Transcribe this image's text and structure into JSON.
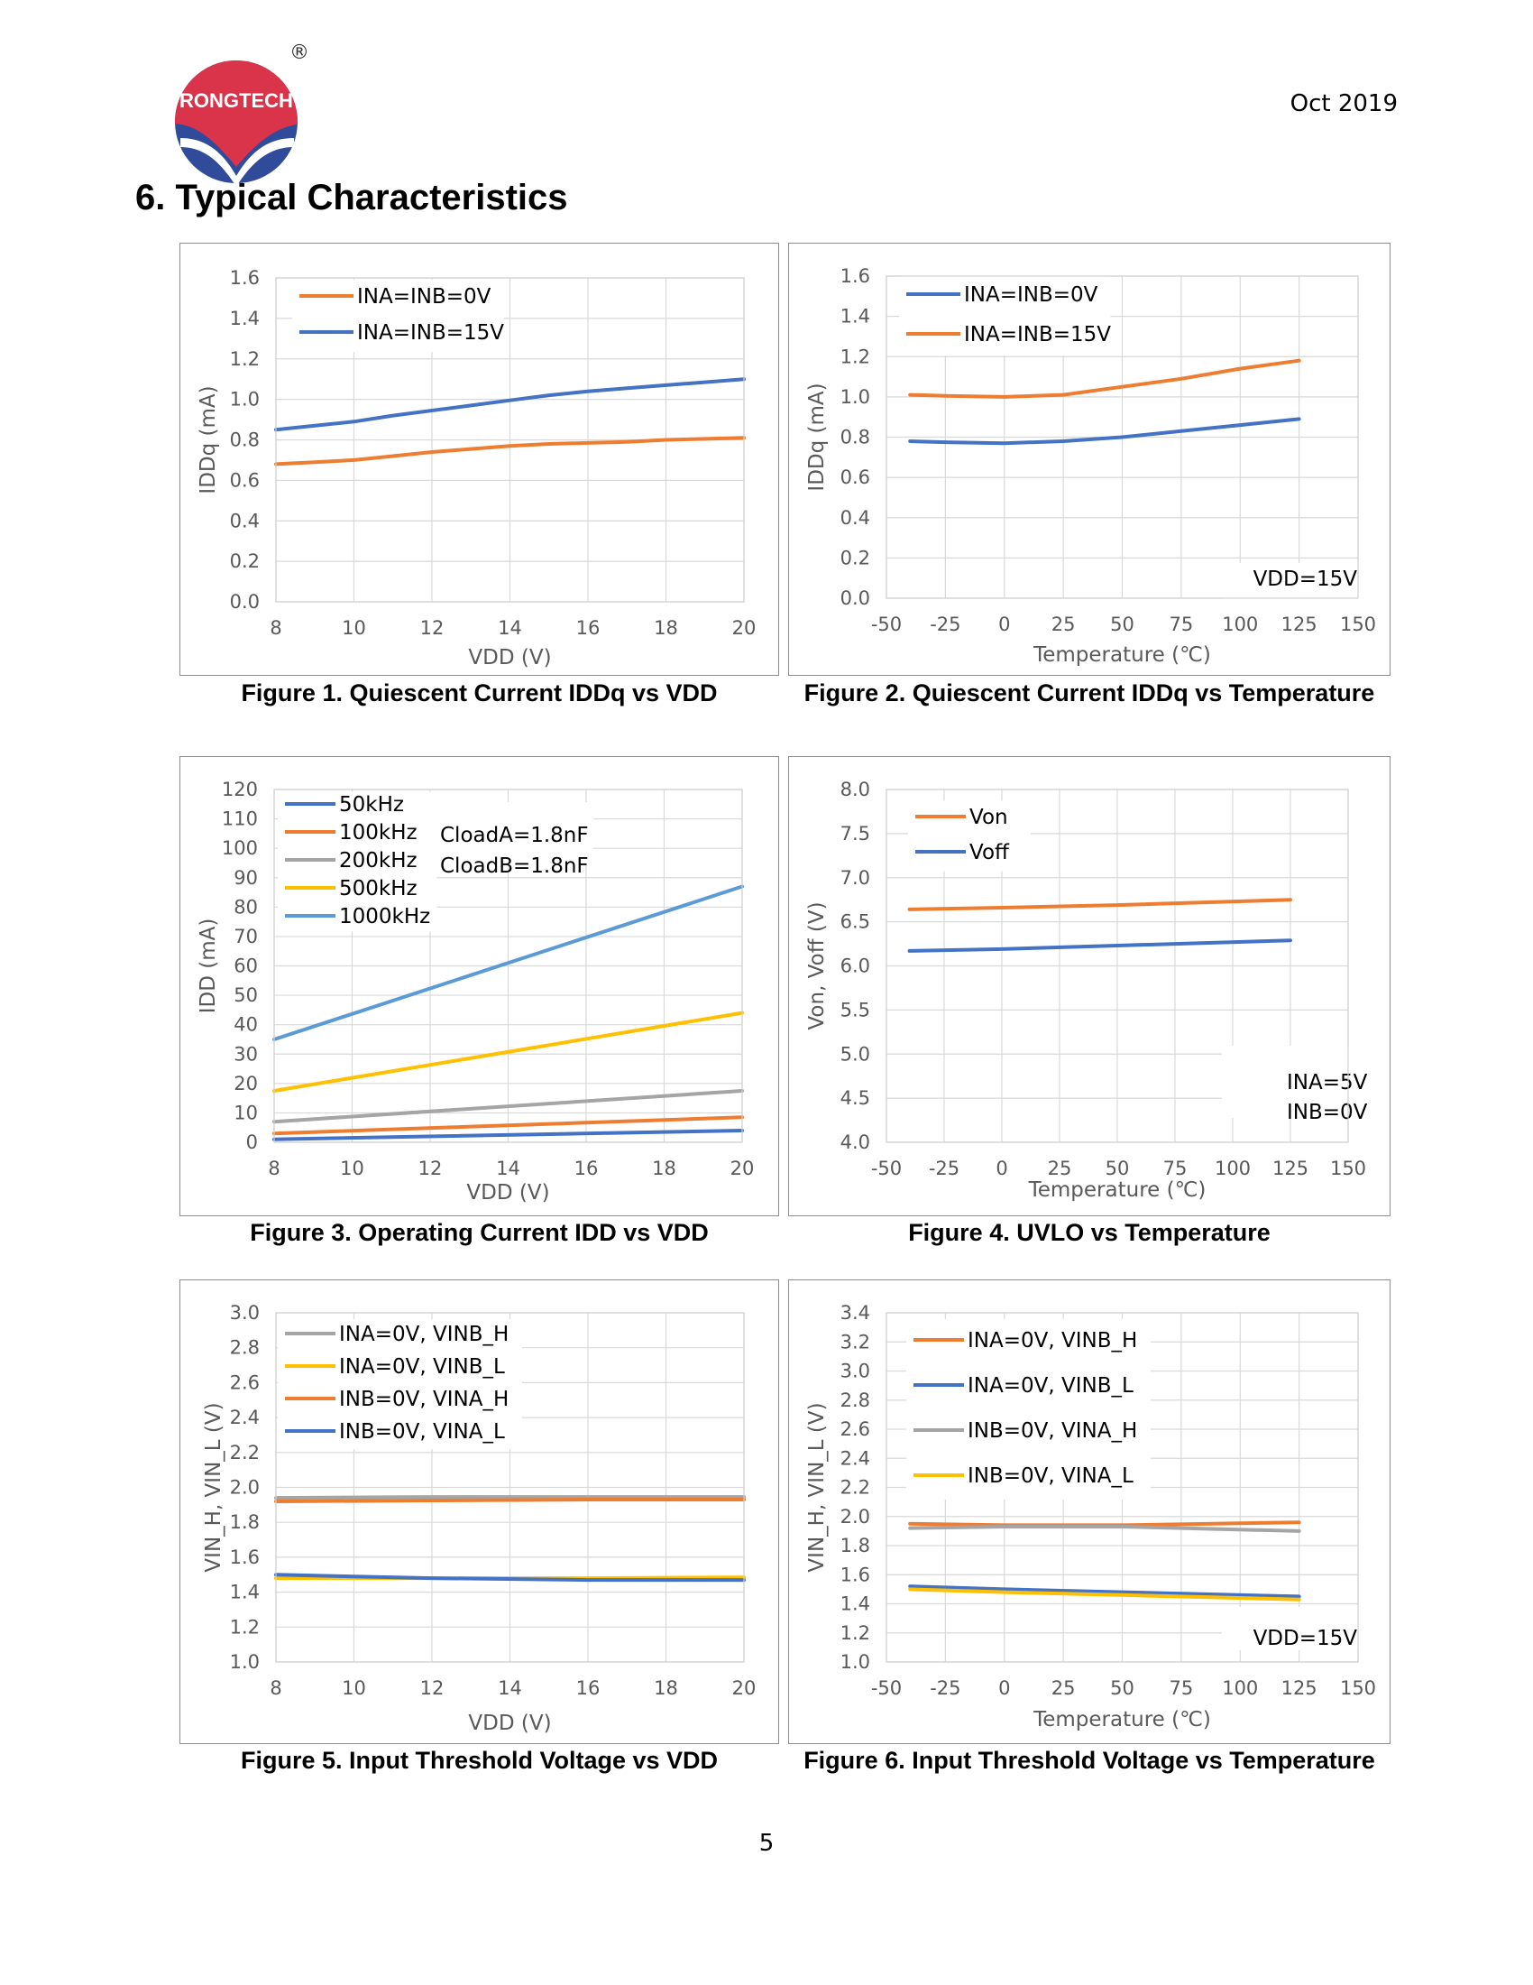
{
  "header": {
    "logo_text": "RONGTECH",
    "registered_mark": "®",
    "date": "Oct 2019",
    "section_title": "6.  Typical Characteristics"
  },
  "footer": {
    "page_number": "5"
  },
  "colors": {
    "blue": "#4472c4",
    "orange": "#ed7d31",
    "gray": "#a5a5a5",
    "yellow": "#ffc000",
    "lightblue": "#5b9bd5",
    "logo_red": "#d9344a",
    "logo_blue": "#2f4b9a"
  },
  "chart_data": [
    {
      "id": "fig1",
      "type": "line",
      "caption": "Figure 1. Quiescent Current IDDq vs VDD",
      "xlabel": "VDD (V)",
      "ylabel": "IDDq (mA)",
      "xlim": [
        8,
        20
      ],
      "ylim": [
        0,
        1.6
      ],
      "xticks": [
        8,
        10,
        12,
        14,
        16,
        18,
        20
      ],
      "xtick_labels": [
        "8",
        "10",
        "12",
        "14",
        "16",
        "18",
        "20"
      ],
      "yticks": [
        0,
        0.2,
        0.4,
        0.6,
        0.8,
        1.0,
        1.2,
        1.4,
        1.6
      ],
      "ytick_labels": [
        "0.0",
        "0.2",
        "0.4",
        "0.6",
        "0.8",
        "1.0",
        "1.2",
        "1.4",
        "1.6"
      ],
      "grid": "both",
      "legend_position": "top-left",
      "series": [
        {
          "name": "INA=INB=0V",
          "color": "orange",
          "x": [
            8,
            9,
            10,
            11,
            12,
            13,
            14,
            15,
            16,
            17,
            18,
            19,
            20
          ],
          "y": [
            0.68,
            0.69,
            0.7,
            0.72,
            0.74,
            0.755,
            0.77,
            0.78,
            0.785,
            0.79,
            0.8,
            0.805,
            0.81
          ]
        },
        {
          "name": "INA=INB=15V",
          "color": "blue",
          "x": [
            8,
            9,
            10,
            11,
            12,
            13,
            14,
            15,
            16,
            17,
            18,
            19,
            20
          ],
          "y": [
            0.85,
            0.87,
            0.89,
            0.92,
            0.945,
            0.97,
            0.995,
            1.02,
            1.04,
            1.055,
            1.07,
            1.085,
            1.1
          ]
        }
      ]
    },
    {
      "id": "fig2",
      "type": "line",
      "caption": "Figure 2. Quiescent Current IDDq vs Temperature",
      "xlabel": "Temperature (℃)",
      "ylabel": "IDDq (mA)",
      "xlim": [
        -50,
        150
      ],
      "ylim": [
        0,
        1.6
      ],
      "xticks": [
        -50,
        -25,
        0,
        25,
        50,
        75,
        100,
        125,
        150
      ],
      "xtick_labels": [
        "-50",
        "-25",
        "0",
        "25",
        "50",
        "75",
        "100",
        "125",
        "150"
      ],
      "yticks": [
        0,
        0.2,
        0.4,
        0.6,
        0.8,
        1.0,
        1.2,
        1.4,
        1.6
      ],
      "ytick_labels": [
        "0.0",
        "0.2",
        "0.4",
        "0.6",
        "0.8",
        "1.0",
        "1.2",
        "1.4",
        "1.6"
      ],
      "grid": "both",
      "legend_position": "top-left",
      "annotations": [
        "VDD=15V"
      ],
      "series": [
        {
          "name": "INA=INB=0V",
          "color": "blue",
          "x": [
            -40,
            -25,
            0,
            25,
            50,
            75,
            100,
            125
          ],
          "y": [
            0.78,
            0.775,
            0.77,
            0.78,
            0.8,
            0.83,
            0.86,
            0.89
          ]
        },
        {
          "name": "INA=INB=15V",
          "color": "orange",
          "x": [
            -40,
            -25,
            0,
            25,
            50,
            75,
            100,
            125
          ],
          "y": [
            1.01,
            1.005,
            1.0,
            1.01,
            1.05,
            1.09,
            1.14,
            1.18
          ]
        }
      ]
    },
    {
      "id": "fig3",
      "type": "line",
      "caption": "Figure 3. Operating Current IDD vs VDD",
      "xlabel": "VDD (V)",
      "ylabel": "IDD (mA)",
      "xlim": [
        8,
        20
      ],
      "ylim": [
        0,
        120
      ],
      "xticks": [
        8,
        10,
        12,
        14,
        16,
        18,
        20
      ],
      "xtick_labels": [
        "8",
        "10",
        "12",
        "14",
        "16",
        "18",
        "20"
      ],
      "yticks": [
        0,
        10,
        20,
        30,
        40,
        50,
        60,
        70,
        80,
        90,
        100,
        110,
        120
      ],
      "ytick_labels": [
        "0",
        "10",
        "20",
        "30",
        "40",
        "50",
        "60",
        "70",
        "80",
        "90",
        "100",
        "110",
        "120"
      ],
      "grid": "both",
      "legend_position": "top-left",
      "annotations": [
        "CloadA=1.8nF",
        "CloadB=1.8nF"
      ],
      "series": [
        {
          "name": "50kHz",
          "color": "blue",
          "x": [
            8,
            20
          ],
          "y": [
            1,
            4
          ]
        },
        {
          "name": "100kHz",
          "color": "orange",
          "x": [
            8,
            20
          ],
          "y": [
            3,
            8.5
          ]
        },
        {
          "name": "200kHz",
          "color": "gray",
          "x": [
            8,
            20
          ],
          "y": [
            7,
            17.5
          ]
        },
        {
          "name": "500kHz",
          "color": "yellow",
          "x": [
            8,
            20
          ],
          "y": [
            17.5,
            44
          ]
        },
        {
          "name": "1000kHz",
          "color": "lightblue",
          "x": [
            8,
            20
          ],
          "y": [
            35,
            87
          ]
        }
      ]
    },
    {
      "id": "fig4",
      "type": "line",
      "caption": "Figure 4. UVLO vs Temperature",
      "xlabel": "Temperature (℃)",
      "ylabel": "Von, Voff (V)",
      "xlim": [
        -50,
        150
      ],
      "ylim": [
        4.0,
        8.0
      ],
      "xticks": [
        -50,
        -25,
        0,
        25,
        50,
        75,
        100,
        125,
        150
      ],
      "xtick_labels": [
        "-50",
        "-25",
        "0",
        "25",
        "50",
        "75",
        "100",
        "125",
        "150"
      ],
      "yticks": [
        4.0,
        4.5,
        5.0,
        5.5,
        6.0,
        6.5,
        7.0,
        7.5,
        8.0
      ],
      "ytick_labels": [
        "4.0",
        "4.5",
        "5.0",
        "5.5",
        "6.0",
        "6.5",
        "7.0",
        "7.5",
        "8.0"
      ],
      "grid": "both",
      "legend_position": "top-left",
      "annotations": [
        "INA=5V",
        "INB=0V"
      ],
      "series": [
        {
          "name": "Von",
          "color": "orange",
          "x": [
            -40,
            0,
            50,
            125
          ],
          "y": [
            6.64,
            6.66,
            6.69,
            6.75
          ]
        },
        {
          "name": "Voff",
          "color": "blue",
          "x": [
            -40,
            0,
            50,
            125
          ],
          "y": [
            6.17,
            6.19,
            6.23,
            6.29
          ]
        }
      ]
    },
    {
      "id": "fig5",
      "type": "line",
      "caption": "Figure 5. Input Threshold Voltage vs VDD",
      "xlabel": "VDD (V)",
      "ylabel": "VIN_H, VIN_L (V)",
      "xlim": [
        8,
        20
      ],
      "ylim": [
        1.0,
        3.0
      ],
      "xticks": [
        8,
        10,
        12,
        14,
        16,
        18,
        20
      ],
      "xtick_labels": [
        "8",
        "10",
        "12",
        "14",
        "16",
        "18",
        "20"
      ],
      "yticks": [
        1.0,
        1.2,
        1.4,
        1.6,
        1.8,
        2.0,
        2.2,
        2.4,
        2.6,
        2.8,
        3.0
      ],
      "ytick_labels": [
        "1.0",
        "1.2",
        "1.4",
        "1.6",
        "1.8",
        "2.0",
        "2.2",
        "2.4",
        "2.6",
        "2.8",
        "3.0"
      ],
      "grid": "both",
      "legend_position": "top-left",
      "series": [
        {
          "name": "INA=0V, VINB_H",
          "color": "gray",
          "x": [
            8,
            12,
            16,
            20
          ],
          "y": [
            1.94,
            1.945,
            1.945,
            1.945
          ]
        },
        {
          "name": "INA=0V, VINB_L",
          "color": "yellow",
          "x": [
            8,
            12,
            16,
            20
          ],
          "y": [
            1.48,
            1.48,
            1.48,
            1.485
          ]
        },
        {
          "name": "INB=0V, VINA_H",
          "color": "orange",
          "x": [
            8,
            12,
            16,
            20
          ],
          "y": [
            1.92,
            1.925,
            1.93,
            1.93
          ]
        },
        {
          "name": "INB=0V, VINA_L",
          "color": "blue",
          "x": [
            8,
            10,
            12,
            16,
            20
          ],
          "y": [
            1.5,
            1.49,
            1.48,
            1.47,
            1.47
          ]
        }
      ]
    },
    {
      "id": "fig6",
      "type": "line",
      "caption": "Figure 6. Input Threshold Voltage vs Temperature",
      "xlabel": "Temperature (℃)",
      "ylabel": "VIN_H, VIN_L (V)",
      "xlim": [
        -50,
        150
      ],
      "ylim": [
        1.0,
        3.4
      ],
      "xticks": [
        -50,
        -25,
        0,
        25,
        50,
        75,
        100,
        125,
        150
      ],
      "xtick_labels": [
        "-50",
        "-25",
        "0",
        "25",
        "50",
        "75",
        "100",
        "125",
        "150"
      ],
      "yticks": [
        1.0,
        1.2,
        1.4,
        1.6,
        1.8,
        2.0,
        2.2,
        2.4,
        2.6,
        2.8,
        3.0,
        3.2,
        3.4
      ],
      "ytick_labels": [
        "1.0",
        "1.2",
        "1.4",
        "1.6",
        "1.8",
        "2.0",
        "2.2",
        "2.4",
        "2.6",
        "2.8",
        "3.0",
        "3.2",
        "3.4"
      ],
      "grid": "both",
      "legend_position": "top-left",
      "annotations": [
        "VDD=15V"
      ],
      "series": [
        {
          "name": "INA=0V, VINB_H",
          "color": "orange",
          "x": [
            -40,
            0,
            50,
            125
          ],
          "y": [
            1.95,
            1.94,
            1.94,
            1.96
          ]
        },
        {
          "name": "INA=0V, VINB_L",
          "color": "blue",
          "x": [
            -40,
            0,
            50,
            125
          ],
          "y": [
            1.52,
            1.5,
            1.48,
            1.45
          ]
        },
        {
          "name": "INB=0V, VINA_H",
          "color": "gray",
          "x": [
            -40,
            0,
            50,
            125
          ],
          "y": [
            1.92,
            1.93,
            1.93,
            1.9
          ]
        },
        {
          "name": "INB=0V, VINA_L",
          "color": "yellow",
          "x": [
            -40,
            0,
            50,
            125
          ],
          "y": [
            1.5,
            1.48,
            1.46,
            1.43
          ]
        }
      ]
    }
  ]
}
